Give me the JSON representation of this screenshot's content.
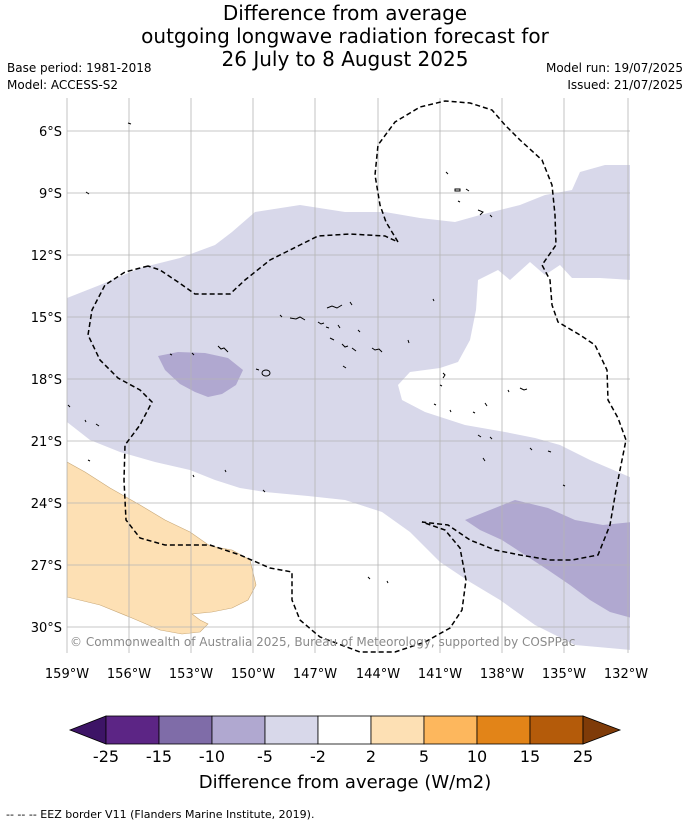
{
  "title_lines": [
    "Difference from average",
    "outgoing longwave radiation forecast for",
    "26 July to 8 August 2025"
  ],
  "meta_left": [
    "Base period: 1981-2018",
    "Model: ACCESS-S2"
  ],
  "meta_right": [
    "Model run: 19/07/2025",
    "Issued: 21/07/2025"
  ],
  "lat_labels": [
    "6°S",
    "9°S",
    "12°S",
    "15°S",
    "18°S",
    "21°S",
    "24°S",
    "27°S",
    "30°S"
  ],
  "lon_labels": [
    "159°W",
    "156°W",
    "153°W",
    "150°W",
    "147°W",
    "144°W",
    "141°W",
    "138°W",
    "135°W",
    "132°W"
  ],
  "credit": "© Commonwealth of Australia 2025, Bureau of Meteorology, supported by COSPPac",
  "colorbar": {
    "labels": [
      "-25",
      "-15",
      "-10",
      "-5",
      "-2",
      "2",
      "5",
      "10",
      "15",
      "25"
    ],
    "title": "Difference from average (W/m2)",
    "colors": [
      "#3d1466",
      "#5c2585",
      "#7f6ca8",
      "#b0a8d0",
      "#d8d8ea",
      "#ffffff",
      "#fde0b4",
      "#fdb75d",
      "#e28418",
      "#b45b0a",
      "#7f3b08"
    ]
  },
  "footer": "--  --  -- EEZ border V11 (Flanders Marine Institute, 2019).",
  "colors": {
    "light_purple": "#d8d8ea",
    "mid_purple": "#b0a8d0",
    "light_orange": "#fde0b4",
    "grid": "#b4b4b4"
  }
}
